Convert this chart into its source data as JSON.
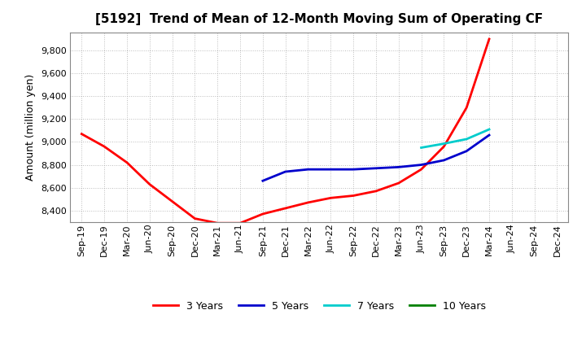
{
  "title": "[5192]  Trend of Mean of 12-Month Moving Sum of Operating CF",
  "ylabel": "Amount (million yen)",
  "ylim": [
    8300,
    9960
  ],
  "yticks": [
    8400,
    8600,
    8800,
    9000,
    9200,
    9400,
    9600,
    9800
  ],
  "background_color": "#ffffff",
  "plot_bg_color": "#ffffff",
  "grid_color": "#aaaaaa",
  "x_labels": [
    "Sep-19",
    "Dec-19",
    "Mar-20",
    "Jun-20",
    "Sep-20",
    "Dec-20",
    "Mar-21",
    "Jun-21",
    "Sep-21",
    "Dec-21",
    "Mar-22",
    "Jun-22",
    "Sep-22",
    "Dec-22",
    "Mar-23",
    "Jun-23",
    "Sep-23",
    "Dec-23",
    "Mar-24",
    "Jun-24",
    "Sep-24",
    "Dec-24"
  ],
  "series": {
    "3 Years": {
      "color": "#ff0000",
      "data_x": [
        0,
        1,
        2,
        3,
        4,
        5,
        6,
        7,
        8,
        9,
        10,
        11,
        12,
        13,
        14,
        15,
        16,
        17,
        18
      ],
      "data_y": [
        9070,
        8960,
        8820,
        8630,
        8480,
        8330,
        8290,
        8290,
        8370,
        8420,
        8470,
        8510,
        8530,
        8570,
        8640,
        8760,
        8960,
        9300,
        9900
      ]
    },
    "5 Years": {
      "color": "#0000cc",
      "data_x": [
        8,
        9,
        10,
        11,
        12,
        13,
        14,
        15,
        16,
        17,
        18
      ],
      "data_y": [
        8660,
        8740,
        8760,
        8760,
        8760,
        8770,
        8780,
        8800,
        8840,
        8920,
        9060
      ]
    },
    "7 Years": {
      "color": "#00cccc",
      "data_x": [
        15,
        16,
        17,
        18
      ],
      "data_y": [
        8950,
        8985,
        9025,
        9110
      ]
    },
    "10 Years": {
      "color": "#008000",
      "data_x": [],
      "data_y": []
    }
  },
  "legend_labels": [
    "3 Years",
    "5 Years",
    "7 Years",
    "10 Years"
  ],
  "legend_colors": [
    "#ff0000",
    "#0000cc",
    "#00cccc",
    "#008000"
  ],
  "title_fontsize": 11,
  "axis_fontsize": 9,
  "tick_fontsize": 8,
  "line_width": 2.0
}
